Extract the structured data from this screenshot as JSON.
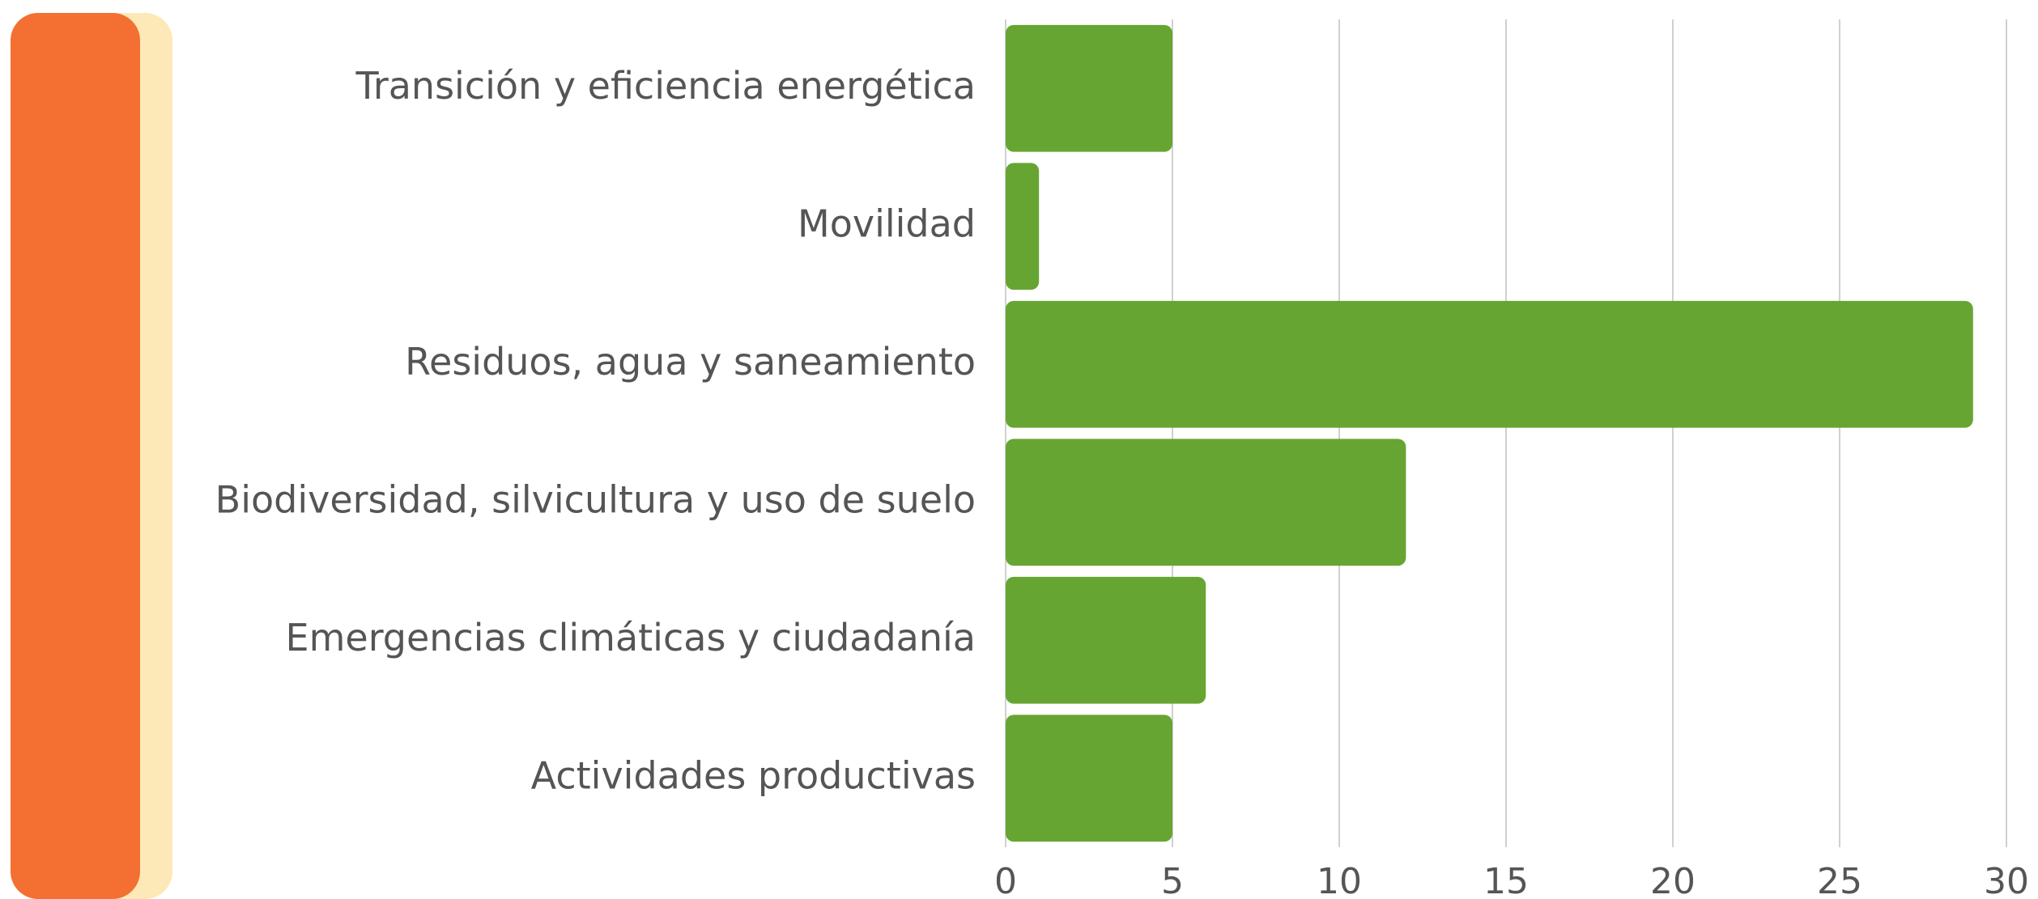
{
  "chart_data": {
    "type": "bar",
    "orientation": "horizontal",
    "categories": [
      "Transición y eficiencia energética",
      "Movilidad",
      "Residuos, agua y saneamiento",
      "Biodiversidad, silvicultura y uso de suelo",
      "Emergencias climáticas y ciudadanía",
      "Actividades productivas"
    ],
    "values": [
      5,
      1,
      29,
      12,
      6,
      5
    ],
    "color": "#67a532",
    "xlim": [
      0,
      30
    ],
    "xticks": [
      0,
      5,
      10,
      15,
      20,
      25,
      30
    ],
    "grid": true
  }
}
